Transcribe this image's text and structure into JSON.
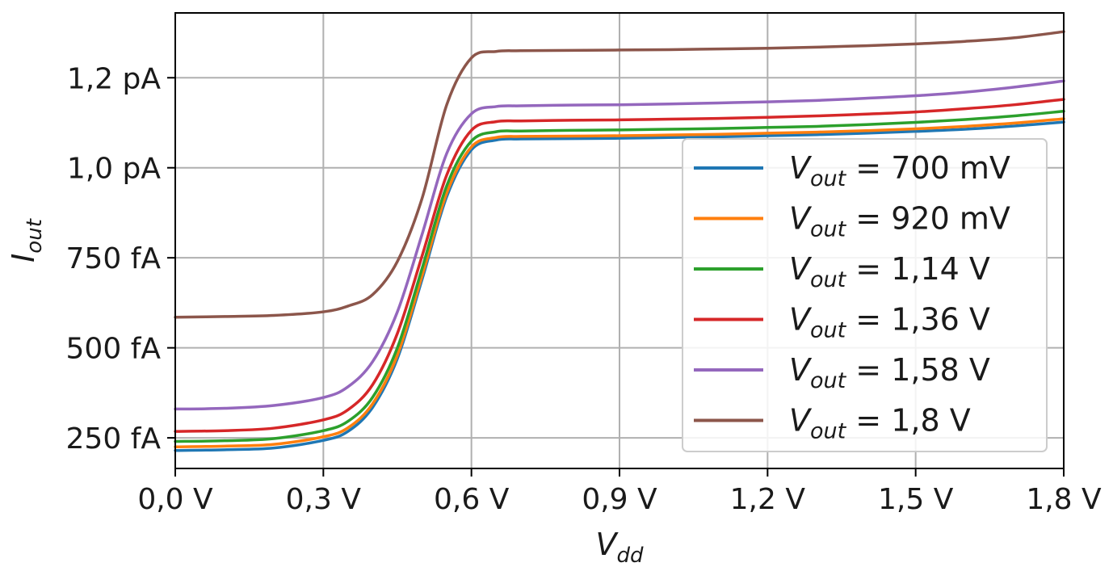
{
  "chart_data": {
    "type": "line",
    "xlabel": {
      "main": "V",
      "sub": "dd"
    },
    "ylabel": {
      "main": "I",
      "sub": "out"
    },
    "xlim": [
      0.0,
      1.8
    ],
    "ylim_fA": [
      165,
      1430
    ],
    "grid": true,
    "legend_placement": "right",
    "x_ticks": [
      {
        "value": 0.0,
        "label": "0,0 V"
      },
      {
        "value": 0.3,
        "label": "0,3 V"
      },
      {
        "value": 0.6,
        "label": "0,6 V"
      },
      {
        "value": 0.9,
        "label": "0,9 V"
      },
      {
        "value": 1.2,
        "label": "1,2 V"
      },
      {
        "value": 1.5,
        "label": "1,5 V"
      },
      {
        "value": 1.8,
        "label": "1,8 V"
      }
    ],
    "y_ticks": [
      {
        "value": 250,
        "label": "250 fA"
      },
      {
        "value": 500,
        "label": "500 fA"
      },
      {
        "value": 750,
        "label": "750 fA"
      },
      {
        "value": 1000,
        "label": "1,0 pA"
      },
      {
        "value": 1250,
        "label": "1,2 pA"
      }
    ],
    "x": [
      0.0,
      0.1,
      0.2,
      0.3,
      0.35,
      0.4,
      0.45,
      0.5,
      0.55,
      0.6,
      0.65,
      0.7,
      0.8,
      0.9,
      1.0,
      1.1,
      1.2,
      1.3,
      1.4,
      1.5,
      1.6,
      1.7,
      1.8
    ],
    "series": [
      {
        "legend_var": "V",
        "legend_sub": "out",
        "legend_value": " = 700 mV",
        "color": "#1f77b4",
        "values": [
          215,
          217,
          222,
          243,
          268,
          335,
          470,
          690,
          920,
          1050,
          1077,
          1080,
          1081,
          1082,
          1084,
          1086,
          1089,
          1092,
          1096,
          1101,
          1107,
          1116,
          1127
        ]
      },
      {
        "legend_var": "V",
        "legend_sub": "out",
        "legend_value": " = 920 mV",
        "color": "#ff7f0e",
        "values": [
          225,
          227,
          232,
          253,
          278,
          345,
          480,
          700,
          930,
          1058,
          1084,
          1087,
          1088,
          1089,
          1091,
          1093,
          1096,
          1099,
          1103,
          1108,
          1115,
          1124,
          1136
        ]
      },
      {
        "legend_var": "V",
        "legend_sub": "out",
        "legend_value": " = 1,14 V",
        "color": "#2ca02c",
        "values": [
          240,
          242,
          248,
          270,
          296,
          363,
          500,
          720,
          950,
          1074,
          1100,
          1102,
          1104,
          1105,
          1107,
          1109,
          1112,
          1115,
          1120,
          1126,
          1134,
          1144,
          1157
        ]
      },
      {
        "legend_var": "V",
        "legend_sub": "out",
        "legend_value": " = 1,36 V",
        "color": "#d62728",
        "values": [
          268,
          270,
          277,
          300,
          328,
          398,
          540,
          755,
          980,
          1104,
          1128,
          1130,
          1132,
          1133,
          1135,
          1137,
          1140,
          1144,
          1149,
          1155,
          1164,
          1175,
          1190
        ]
      },
      {
        "legend_var": "V",
        "legend_sub": "out",
        "legend_value": " = 1,58 V",
        "color": "#9467bd",
        "values": [
          330,
          332,
          340,
          362,
          392,
          462,
          600,
          815,
          1040,
          1150,
          1170,
          1172,
          1174,
          1175,
          1177,
          1180,
          1183,
          1187,
          1193,
          1200,
          1210,
          1224,
          1241
        ]
      },
      {
        "legend_var": "V",
        "legend_sub": "out",
        "legend_value": " = 1,8 V",
        "color": "#8c564b",
        "values": [
          585,
          587,
          590,
          600,
          616,
          648,
          740,
          915,
          1175,
          1305,
          1323,
          1325,
          1326,
          1327,
          1328,
          1330,
          1332,
          1335,
          1339,
          1344,
          1351,
          1361,
          1378
        ]
      }
    ]
  }
}
